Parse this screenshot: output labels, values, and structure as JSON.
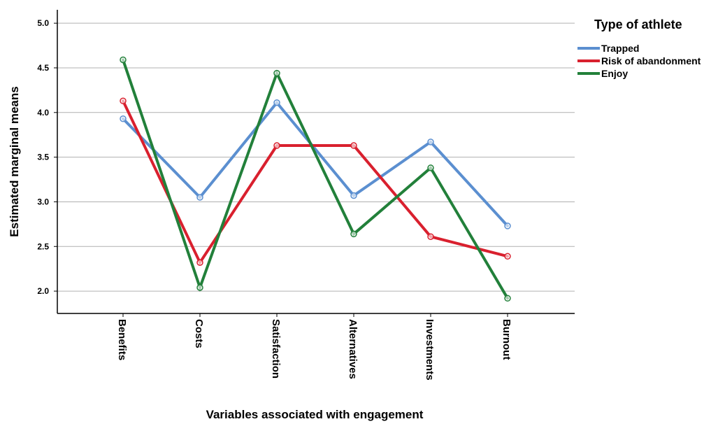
{
  "chart_data": {
    "type": "line",
    "xlabel": "Variables associated with engagement",
    "ylabel": "Estimated marginal means",
    "categories": [
      "Benefits",
      "Costs",
      "Satisfaction",
      "Alternatives",
      "Investments",
      "Burnout"
    ],
    "ylim": [
      1.75,
      5.15
    ],
    "yticks": [
      2.0,
      2.5,
      3.0,
      3.5,
      4.0,
      4.5,
      5.0
    ],
    "ytick_labels": [
      "2.0",
      "2.5",
      "3.0",
      "3.5",
      "4.0",
      "4.5",
      "5.0"
    ],
    "grid": true,
    "legend": {
      "title": "Type of athlete",
      "position": "top-right outside"
    },
    "series": [
      {
        "name": "Trapped",
        "color": "#5b8fd0",
        "values": [
          3.93,
          3.05,
          4.11,
          3.07,
          3.67,
          2.73
        ]
      },
      {
        "name": "Risk of abandonment",
        "color": "#d9202e",
        "values": [
          4.13,
          2.32,
          3.63,
          3.63,
          2.61,
          2.39
        ]
      },
      {
        "name": "Enjoy",
        "color": "#22803a",
        "values": [
          4.59,
          2.04,
          4.44,
          2.64,
          3.38,
          1.92
        ]
      }
    ]
  }
}
